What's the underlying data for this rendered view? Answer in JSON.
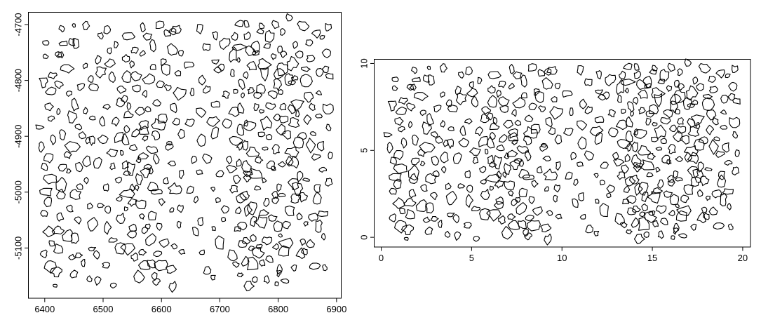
{
  "figure": {
    "description": "Two-panel spatial point pattern plot of irregular object outlines; right panel shows the same pattern rescaled",
    "background": "#ffffff",
    "stroke_color": "#000000"
  },
  "chart_data": [
    {
      "type": "scatter",
      "variant": "irregular-outline-objects",
      "panel": "left",
      "title": "",
      "xlabel": "",
      "ylabel": "",
      "xlim": [
        6372,
        6908
      ],
      "ylim": [
        -5190,
        -4678
      ],
      "xtick_values": [
        6400,
        6500,
        6600,
        6700,
        6800,
        6900
      ],
      "xtick_labels": [
        "6400",
        "6500",
        "6600",
        "6700",
        "6800",
        "6900"
      ],
      "ytick_values": [
        -5100,
        -5000,
        -4900,
        -4800,
        -4700
      ],
      "ytick_labels": [
        "-5100",
        "-5000",
        "-4900",
        "-4800",
        "-4700"
      ],
      "grid": false,
      "legend": false
    },
    {
      "type": "scatter",
      "variant": "irregular-outline-objects",
      "panel": "right",
      "title": "",
      "xlabel": "",
      "ylabel": "",
      "xlim": [
        -0.39,
        20.43
      ],
      "ylim": [
        -0.56,
        10.24
      ],
      "xtick_values": [
        0,
        5,
        10,
        15,
        20
      ],
      "xtick_labels": [
        "0",
        "5",
        "10",
        "15",
        "20"
      ],
      "ytick_values": [
        0,
        5,
        10
      ],
      "ytick_labels": [
        "0",
        "5",
        "10"
      ],
      "grid": false,
      "legend": false
    }
  ],
  "blob_space": {
    "xlim": [
      -0.39,
      20.43
    ],
    "ylim": [
      -0.56,
      10.24
    ]
  },
  "blob_centers": [
    [
      2.6,
      9.8
    ],
    [
      3.4,
      9.7
    ],
    [
      1.9,
      9.5
    ],
    [
      4.3,
      9.4
    ],
    [
      5.1,
      9.5
    ],
    [
      0.9,
      9.2
    ],
    [
      2.2,
      9.1
    ],
    [
      3.0,
      9.3
    ],
    [
      5.6,
      9.2
    ],
    [
      1.4,
      8.8
    ],
    [
      2.7,
      8.9
    ],
    [
      4.8,
      8.7
    ],
    [
      0.6,
      8.4
    ],
    [
      2.0,
      8.5
    ],
    [
      3.5,
      8.3
    ],
    [
      4.1,
      8.4
    ],
    [
      5.3,
      8.5
    ],
    [
      1.1,
      8.0
    ],
    [
      2.4,
      8.1
    ],
    [
      4.5,
      7.9
    ],
    [
      0.5,
      7.6
    ],
    [
      1.7,
      7.7
    ],
    [
      2.9,
      7.5
    ],
    [
      3.8,
      7.6
    ],
    [
      5.0,
      7.7
    ],
    [
      5.8,
      7.5
    ],
    [
      1.3,
      7.2
    ],
    [
      2.1,
      7.1
    ],
    [
      4.2,
      7.3
    ],
    [
      0.8,
      6.8
    ],
    [
      2.6,
      6.9
    ],
    [
      3.3,
      6.7
    ],
    [
      4.9,
      6.8
    ],
    [
      5.5,
      6.9
    ],
    [
      1.6,
      6.4
    ],
    [
      2.3,
      6.5
    ],
    [
      3.9,
      6.3
    ],
    [
      0.4,
      6.0
    ],
    [
      1.2,
      6.1
    ],
    [
      2.8,
      5.9
    ],
    [
      4.4,
      6.0
    ],
    [
      5.2,
      6.1
    ],
    [
      1.9,
      5.6
    ],
    [
      3.1,
      5.7
    ],
    [
      4.0,
      5.5
    ],
    [
      5.7,
      5.6
    ],
    [
      0.7,
      5.2
    ],
    [
      1.5,
      5.3
    ],
    [
      2.5,
      5.1
    ],
    [
      3.6,
      5.2
    ],
    [
      4.6,
      5.3
    ],
    [
      1.0,
      4.8
    ],
    [
      2.2,
      4.9
    ],
    [
      3.4,
      4.7
    ],
    [
      5.4,
      4.8
    ],
    [
      0.5,
      4.4
    ],
    [
      1.8,
      4.5
    ],
    [
      2.9,
      4.3
    ],
    [
      4.1,
      4.4
    ],
    [
      5.0,
      4.5
    ],
    [
      1.3,
      4.0
    ],
    [
      2.4,
      4.1
    ],
    [
      3.7,
      3.9
    ],
    [
      5.8,
      4.0
    ],
    [
      0.9,
      3.6
    ],
    [
      2.0,
      3.7
    ],
    [
      3.2,
      3.5
    ],
    [
      4.7,
      3.6
    ],
    [
      1.6,
      3.2
    ],
    [
      2.7,
      3.3
    ],
    [
      4.3,
      3.1
    ],
    [
      5.5,
      3.2
    ],
    [
      0.6,
      2.8
    ],
    [
      1.1,
      2.9
    ],
    [
      2.3,
      2.7
    ],
    [
      3.5,
      2.8
    ],
    [
      5.1,
      2.9
    ],
    [
      1.9,
      2.4
    ],
    [
      2.9,
      2.5
    ],
    [
      4.0,
      2.3
    ],
    [
      5.9,
      2.4
    ],
    [
      0.8,
      2.0
    ],
    [
      1.5,
      2.1
    ],
    [
      2.6,
      1.9
    ],
    [
      4.6,
      2.0
    ],
    [
      1.2,
      1.6
    ],
    [
      2.1,
      1.7
    ],
    [
      3.8,
      1.5
    ],
    [
      5.3,
      1.6
    ],
    [
      0.5,
      1.2
    ],
    [
      1.7,
      1.3
    ],
    [
      3.0,
      1.1
    ],
    [
      4.4,
      1.2
    ],
    [
      5.6,
      1.3
    ],
    [
      1.0,
      0.8
    ],
    [
      2.4,
      0.9
    ],
    [
      3.3,
      0.7
    ],
    [
      4.9,
      0.8
    ],
    [
      1.4,
      0.4
    ],
    [
      2.8,
      0.5
    ],
    [
      4.1,
      0.3
    ],
    [
      7.1,
      9.8
    ],
    [
      8.3,
      9.9
    ],
    [
      9.2,
      9.7
    ],
    [
      6.3,
      9.4
    ],
    [
      7.6,
      9.5
    ],
    [
      8.8,
      9.3
    ],
    [
      9.6,
      9.4
    ],
    [
      6.8,
      9.0
    ],
    [
      8.0,
      9.1
    ],
    [
      9.4,
      8.9
    ],
    [
      6.1,
      8.6
    ],
    [
      7.3,
      8.7
    ],
    [
      8.5,
      8.5
    ],
    [
      9.8,
      8.6
    ],
    [
      6.6,
      8.2
    ],
    [
      7.8,
      8.3
    ],
    [
      9.0,
      8.1
    ],
    [
      6.2,
      7.8
    ],
    [
      7.0,
      7.9
    ],
    [
      8.2,
      7.7
    ],
    [
      9.5,
      7.8
    ],
    [
      6.7,
      7.4
    ],
    [
      7.5,
      7.5
    ],
    [
      8.9,
      7.3
    ],
    [
      6.0,
      7.0
    ],
    [
      7.2,
      7.1
    ],
    [
      8.4,
      6.9
    ],
    [
      9.7,
      7.0
    ],
    [
      6.5,
      6.6
    ],
    [
      7.7,
      6.7
    ],
    [
      9.1,
      6.5
    ],
    [
      6.1,
      6.2
    ],
    [
      6.9,
      6.3
    ],
    [
      7.4,
      6.1
    ],
    [
      8.6,
      6.2
    ],
    [
      9.3,
      6.3
    ],
    [
      6.4,
      5.8
    ],
    [
      7.1,
      5.9
    ],
    [
      7.9,
      5.7
    ],
    [
      8.1,
      5.8
    ],
    [
      6.2,
      5.4
    ],
    [
      6.8,
      5.5
    ],
    [
      7.5,
      5.3
    ],
    [
      8.8,
      5.4
    ],
    [
      9.6,
      5.5
    ],
    [
      6.0,
      5.0
    ],
    [
      6.6,
      5.1
    ],
    [
      7.2,
      4.9
    ],
    [
      7.8,
      5.0
    ],
    [
      9.0,
      5.1
    ],
    [
      6.3,
      4.6
    ],
    [
      7.0,
      4.7
    ],
    [
      7.6,
      4.5
    ],
    [
      8.3,
      4.6
    ],
    [
      9.4,
      4.7
    ],
    [
      6.1,
      4.2
    ],
    [
      6.7,
      4.3
    ],
    [
      7.4,
      4.1
    ],
    [
      8.0,
      4.2
    ],
    [
      9.8,
      4.3
    ],
    [
      6.5,
      3.8
    ],
    [
      7.1,
      3.9
    ],
    [
      7.7,
      3.7
    ],
    [
      8.7,
      3.8
    ],
    [
      6.2,
      3.4
    ],
    [
      6.9,
      3.5
    ],
    [
      8.1,
      3.3
    ],
    [
      9.2,
      3.4
    ],
    [
      6.6,
      3.0
    ],
    [
      7.3,
      3.1
    ],
    [
      8.5,
      2.9
    ],
    [
      9.5,
      3.0
    ],
    [
      6.0,
      2.6
    ],
    [
      7.0,
      2.7
    ],
    [
      7.8,
      2.5
    ],
    [
      9.0,
      2.6
    ],
    [
      6.4,
      2.2
    ],
    [
      7.5,
      2.3
    ],
    [
      8.2,
      2.1
    ],
    [
      9.7,
      2.2
    ],
    [
      6.8,
      1.8
    ],
    [
      7.2,
      1.9
    ],
    [
      8.8,
      1.7
    ],
    [
      6.1,
      1.4
    ],
    [
      7.7,
      1.5
    ],
    [
      8.4,
      1.3
    ],
    [
      9.3,
      1.4
    ],
    [
      6.5,
      1.0
    ],
    [
      7.0,
      1.1
    ],
    [
      8.0,
      0.9
    ],
    [
      9.6,
      1.0
    ],
    [
      7.4,
      0.6
    ],
    [
      8.6,
      0.7
    ],
    [
      9.1,
      0.5
    ],
    [
      6.9,
      0.3
    ],
    [
      8.2,
      0.3
    ],
    [
      10.8,
      9.6
    ],
    [
      12.1,
      9.5
    ],
    [
      11.4,
      9.0
    ],
    [
      12.8,
      9.1
    ],
    [
      10.5,
      8.4
    ],
    [
      11.9,
      8.5
    ],
    [
      12.5,
      8.3
    ],
    [
      11.0,
      7.8
    ],
    [
      12.3,
      7.9
    ],
    [
      10.7,
      7.2
    ],
    [
      11.6,
      7.3
    ],
    [
      12.9,
      7.1
    ],
    [
      11.2,
      6.6
    ],
    [
      12.0,
      6.7
    ],
    [
      10.4,
      6.0
    ],
    [
      11.8,
      6.1
    ],
    [
      12.6,
      5.9
    ],
    [
      10.9,
      5.4
    ],
    [
      12.2,
      5.5
    ],
    [
      10.6,
      4.8
    ],
    [
      11.5,
      4.9
    ],
    [
      12.8,
      4.7
    ],
    [
      11.1,
      4.2
    ],
    [
      12.4,
      4.3
    ],
    [
      10.3,
      3.6
    ],
    [
      11.7,
      3.7
    ],
    [
      10.9,
      3.0
    ],
    [
      12.1,
      3.1
    ],
    [
      12.7,
      2.9
    ],
    [
      11.3,
      2.4
    ],
    [
      12.5,
      2.5
    ],
    [
      10.6,
      1.8
    ],
    [
      11.9,
      1.9
    ],
    [
      11.0,
      1.2
    ],
    [
      12.3,
      1.3
    ],
    [
      11.6,
      0.6
    ],
    [
      13.5,
      9.9
    ],
    [
      14.3,
      9.8
    ],
    [
      15.2,
      9.9
    ],
    [
      16.1,
      9.8
    ],
    [
      17.0,
      9.9
    ],
    [
      13.2,
      9.5
    ],
    [
      14.0,
      9.4
    ],
    [
      14.9,
      9.5
    ],
    [
      15.8,
      9.4
    ],
    [
      16.6,
      9.5
    ],
    [
      13.7,
      9.1
    ],
    [
      14.5,
      9.0
    ],
    [
      15.4,
      9.1
    ],
    [
      16.3,
      9.0
    ],
    [
      17.2,
      9.1
    ],
    [
      13.4,
      8.7
    ],
    [
      14.2,
      8.6
    ],
    [
      15.0,
      8.7
    ],
    [
      15.9,
      8.6
    ],
    [
      16.8,
      8.7
    ],
    [
      13.8,
      8.3
    ],
    [
      14.6,
      8.2
    ],
    [
      15.5,
      8.3
    ],
    [
      16.4,
      8.2
    ],
    [
      17.1,
      8.3
    ],
    [
      13.3,
      7.9
    ],
    [
      14.1,
      7.8
    ],
    [
      15.2,
      7.9
    ],
    [
      16.0,
      7.8
    ],
    [
      16.9,
      7.9
    ],
    [
      13.6,
      7.5
    ],
    [
      14.4,
      7.4
    ],
    [
      15.3,
      7.5
    ],
    [
      16.2,
      7.4
    ],
    [
      17.0,
      7.5
    ],
    [
      13.2,
      7.1
    ],
    [
      14.0,
      7.0
    ],
    [
      14.8,
      7.1
    ],
    [
      15.7,
      7.0
    ],
    [
      16.5,
      7.1
    ],
    [
      13.9,
      6.7
    ],
    [
      14.7,
      6.6
    ],
    [
      15.5,
      6.7
    ],
    [
      16.3,
      6.6
    ],
    [
      17.2,
      6.7
    ],
    [
      13.4,
      6.3
    ],
    [
      14.3,
      6.2
    ],
    [
      15.1,
      6.3
    ],
    [
      16.0,
      6.2
    ],
    [
      16.8,
      6.3
    ],
    [
      13.7,
      5.9
    ],
    [
      14.5,
      5.8
    ],
    [
      15.4,
      5.9
    ],
    [
      16.2,
      5.8
    ],
    [
      17.1,
      5.9
    ],
    [
      13.3,
      5.5
    ],
    [
      14.1,
      5.4
    ],
    [
      15.0,
      5.5
    ],
    [
      15.8,
      5.4
    ],
    [
      16.6,
      5.5
    ],
    [
      13.8,
      5.1
    ],
    [
      14.6,
      5.0
    ],
    [
      15.3,
      5.1
    ],
    [
      16.1,
      5.0
    ],
    [
      17.0,
      5.1
    ],
    [
      13.5,
      4.7
    ],
    [
      14.2,
      4.6
    ],
    [
      15.1,
      4.7
    ],
    [
      16.0,
      4.6
    ],
    [
      16.9,
      4.7
    ],
    [
      13.2,
      4.3
    ],
    [
      14.0,
      4.2
    ],
    [
      14.9,
      4.3
    ],
    [
      15.7,
      4.2
    ],
    [
      16.5,
      4.3
    ],
    [
      13.6,
      3.9
    ],
    [
      14.4,
      3.8
    ],
    [
      15.2,
      3.9
    ],
    [
      16.2,
      3.8
    ],
    [
      17.1,
      3.9
    ],
    [
      13.3,
      3.5
    ],
    [
      14.1,
      3.4
    ],
    [
      15.0,
      3.5
    ],
    [
      15.9,
      3.4
    ],
    [
      16.7,
      3.5
    ],
    [
      13.8,
      3.1
    ],
    [
      14.6,
      3.0
    ],
    [
      15.4,
      3.1
    ],
    [
      16.3,
      3.0
    ],
    [
      17.2,
      3.1
    ],
    [
      13.4,
      2.7
    ],
    [
      14.2,
      2.6
    ],
    [
      15.1,
      2.7
    ],
    [
      16.0,
      2.6
    ],
    [
      16.8,
      2.7
    ],
    [
      13.7,
      2.3
    ],
    [
      14.5,
      2.2
    ],
    [
      15.3,
      2.3
    ],
    [
      16.1,
      2.2
    ],
    [
      17.0,
      2.3
    ],
    [
      13.3,
      1.9
    ],
    [
      14.0,
      1.8
    ],
    [
      14.8,
      1.9
    ],
    [
      15.6,
      1.8
    ],
    [
      16.4,
      1.9
    ],
    [
      13.6,
      1.5
    ],
    [
      14.3,
      1.4
    ],
    [
      15.2,
      1.5
    ],
    [
      16.0,
      1.4
    ],
    [
      16.9,
      1.5
    ],
    [
      13.2,
      1.1
    ],
    [
      14.1,
      1.0
    ],
    [
      15.0,
      1.1
    ],
    [
      15.8,
      1.0
    ],
    [
      16.7,
      1.1
    ],
    [
      13.5,
      0.7
    ],
    [
      14.4,
      0.6
    ],
    [
      15.3,
      0.7
    ],
    [
      16.2,
      0.6
    ],
    [
      17.1,
      0.7
    ],
    [
      13.9,
      0.3
    ],
    [
      14.7,
      0.2
    ],
    [
      15.5,
      0.3
    ],
    [
      16.3,
      0.2
    ],
    [
      17.8,
      9.7
    ],
    [
      18.6,
      9.6
    ],
    [
      19.4,
      9.7
    ],
    [
      18.1,
      9.2
    ],
    [
      19.0,
      9.1
    ],
    [
      17.6,
      8.7
    ],
    [
      18.4,
      8.6
    ],
    [
      19.5,
      8.7
    ],
    [
      17.9,
      8.2
    ],
    [
      18.8,
      8.1
    ],
    [
      19.2,
      8.2
    ],
    [
      17.5,
      7.7
    ],
    [
      18.3,
      7.6
    ],
    [
      19.6,
      7.7
    ],
    [
      18.0,
      7.2
    ],
    [
      18.9,
      7.1
    ],
    [
      17.7,
      6.7
    ],
    [
      18.5,
      6.6
    ],
    [
      19.3,
      6.7
    ],
    [
      17.4,
      6.2
    ],
    [
      18.2,
      6.1
    ],
    [
      19.0,
      6.2
    ],
    [
      17.9,
      5.7
    ],
    [
      18.7,
      5.6
    ],
    [
      19.5,
      5.7
    ],
    [
      17.6,
      5.2
    ],
    [
      18.4,
      5.1
    ],
    [
      19.1,
      5.2
    ],
    [
      17.5,
      4.7
    ],
    [
      18.8,
      4.6
    ],
    [
      19.6,
      4.7
    ],
    [
      17.8,
      4.2
    ],
    [
      18.3,
      4.1
    ],
    [
      19.2,
      4.2
    ],
    [
      17.5,
      3.7
    ],
    [
      18.6,
      3.6
    ],
    [
      19.4,
      3.7
    ],
    [
      17.9,
      3.2
    ],
    [
      18.9,
      3.1
    ],
    [
      17.6,
      2.7
    ],
    [
      18.4,
      2.6
    ],
    [
      19.3,
      2.7
    ],
    [
      18.0,
      2.2
    ],
    [
      19.0,
      2.1
    ],
    [
      17.7,
      1.7
    ],
    [
      18.6,
      1.6
    ],
    [
      19.5,
      1.7
    ],
    [
      17.5,
      1.2
    ],
    [
      18.2,
      1.1
    ],
    [
      18.8,
      0.7
    ],
    [
      19.3,
      0.6
    ],
    [
      1.6,
      0.1
    ],
    [
      3.6,
      0.1
    ],
    [
      5.2,
      0.05
    ],
    [
      7.9,
      0.1
    ],
    [
      9.0,
      0.05
    ],
    [
      12.0,
      0.1
    ],
    [
      14.5,
      0.05
    ],
    [
      15.9,
      0.1
    ],
    [
      16.8,
      0.05
    ]
  ]
}
